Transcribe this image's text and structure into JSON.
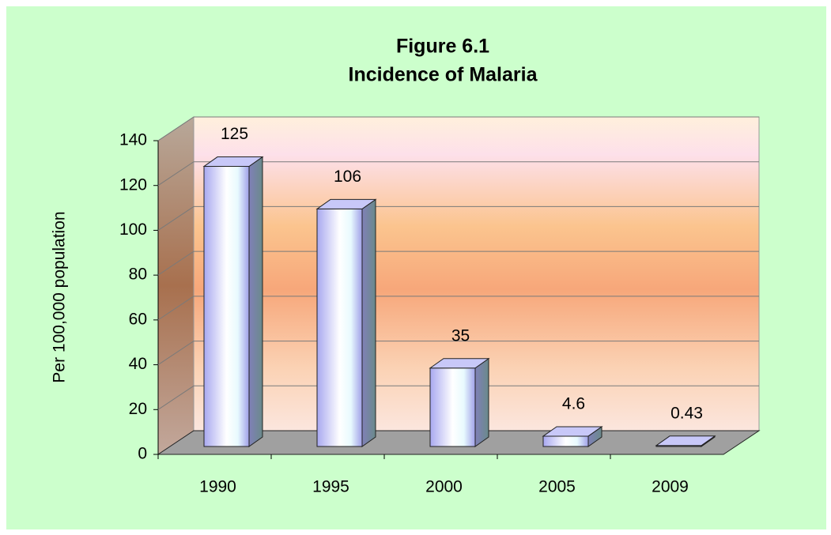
{
  "chart_data": {
    "type": "bar3d",
    "title": "Figure 6.1",
    "subtitle": "Incidence of Malaria",
    "y_label": "Per 100,000 population",
    "categories": [
      "1990",
      "1995",
      "2000",
      "2005",
      "2009"
    ],
    "values": [
      125,
      106,
      35,
      4.6,
      0.43
    ],
    "color": "#c8c8f8",
    "ylim": [
      0,
      140
    ],
    "yticks": [
      0,
      20,
      40,
      60,
      80,
      100,
      120,
      140
    ],
    "grid": true
  }
}
